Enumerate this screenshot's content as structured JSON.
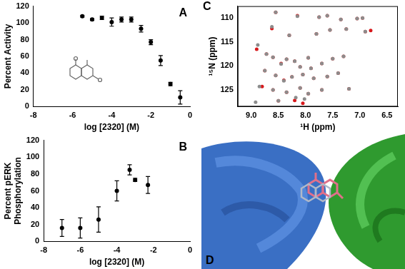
{
  "chart_data": [
    {
      "type": "scatter",
      "title": "A",
      "x_label": "log [2320] (M)",
      "y_label": "Percent Activity",
      "xlim": [
        -8,
        0
      ],
      "xticks": [
        -8,
        -6,
        -4,
        -2,
        0
      ],
      "ylim": [
        0,
        120
      ],
      "yticks": [
        0,
        20,
        40,
        60,
        80,
        100,
        120
      ],
      "grid": false,
      "series": [
        {
          "color": "#000000",
          "marker": "circle",
          "x": [
            -5.5,
            -5,
            -4.5,
            -4,
            -3.5,
            -3,
            -2.5,
            -2,
            -1.5,
            -1,
            -0.5
          ],
          "values": [
            108,
            104,
            106,
            101,
            104,
            104,
            93,
            77,
            55,
            27,
            11
          ],
          "errors": [
            1,
            1,
            2,
            5,
            3,
            3,
            4,
            3,
            6,
            2,
            8
          ]
        }
      ]
    },
    {
      "type": "scatter",
      "title": "B",
      "x_label": "log [2320] (M)",
      "y_label": "Percent pERK Phosphorylation",
      "xlim": [
        -8,
        0
      ],
      "xticks": [
        -8,
        -6,
        -4,
        -2,
        0
      ],
      "ylim": [
        0,
        120
      ],
      "yticks": [
        0,
        20,
        40,
        60,
        80,
        100,
        120
      ],
      "grid": false,
      "series": [
        {
          "color": "#000000",
          "marker": "circle",
          "x": [
            -7,
            -6,
            -5,
            -4,
            -3.3,
            -3,
            -2.3
          ],
          "values": [
            16,
            16,
            26,
            60,
            85,
            73,
            67
          ],
          "errors": [
            10,
            12,
            15,
            12,
            6,
            2,
            10
          ]
        }
      ]
    },
    {
      "type": "scatter",
      "title": "C",
      "x_label": "¹H (ppm)",
      "y_label": "¹⁵N (ppm)",
      "xlim": [
        9.25,
        6.3
      ],
      "xticks": [
        {
          "value": 9,
          "label": "9.0"
        },
        8.5,
        {
          "value": 8,
          "label": "8.0"
        },
        7.5,
        {
          "value": 7,
          "label": "7.0"
        },
        6.5
      ],
      "ylim": [
        128.5,
        107.5
      ],
      "yticks": [
        110,
        115,
        120,
        125
      ],
      "grid": false,
      "series": [
        {
          "color": "#8c8c8c",
          "marker": "circle",
          "x": [
            8.55,
            8.15,
            7.75,
            7.6,
            7.35,
            7.05,
            6.95,
            8.62,
            8.3,
            7.8,
            7.55,
            7.25,
            6.9,
            8.88,
            8.72,
            8.6,
            8.45,
            8.35,
            8.2,
            8.1,
            7.95,
            7.9,
            7.7,
            7.5,
            7.3,
            8.75,
            8.55,
            8.4,
            8.25,
            8.05,
            7.85,
            7.6,
            7.4,
            8.85,
            8.6,
            8.35,
            8.1,
            7.95,
            7.7,
            8.18,
            8.02,
            8.5,
            7.2,
            8.92
          ],
          "values": [
            108.8,
            109.6,
            109.8,
            109.5,
            110.3,
            110.1,
            110.0,
            111.8,
            113.6,
            113.3,
            112.5,
            112.3,
            112.8,
            115.6,
            117.5,
            118.2,
            119.6,
            118.6,
            119.0,
            120.2,
            118.3,
            120.5,
            119.5,
            118.5,
            118.0,
            121.0,
            122.0,
            123.1,
            122.3,
            121.8,
            122.6,
            122.2,
            121.5,
            124.3,
            125.0,
            125.5,
            124.6,
            125.8,
            125.0,
            126.6,
            126.9,
            127.3,
            124.8,
            127.6
          ]
        },
        {
          "color": "#d7191c",
          "marker": "circle",
          "x": [
            8.55,
            8.15,
            7.75,
            7.6,
            7.35,
            7.05,
            6.95,
            8.62,
            8.3,
            7.8,
            7.55,
            7.25,
            6.9,
            6.8,
            8.9,
            8.72,
            8.6,
            8.45,
            8.35,
            8.2,
            8.1,
            7.95,
            7.9,
            7.7,
            7.5,
            7.3,
            8.75,
            8.55,
            8.4,
            8.25,
            8.05,
            7.85,
            7.6,
            7.4,
            8.8,
            8.6,
            8.35,
            8.1,
            7.95,
            7.7,
            8.2,
            8.05,
            8.5,
            7.2
          ],
          "values": [
            108.8,
            109.5,
            109.8,
            109.5,
            110.3,
            110.1,
            110.0,
            112.2,
            113.6,
            113.3,
            112.5,
            112.3,
            112.8,
            112.6,
            116.5,
            117.5,
            118.2,
            119.5,
            118.6,
            119.0,
            120.2,
            118.3,
            120.5,
            119.5,
            118.5,
            118.0,
            121.0,
            122.0,
            123.0,
            122.3,
            121.8,
            122.6,
            122.2,
            121.5,
            124.3,
            125.0,
            125.5,
            124.6,
            125.8,
            125.0,
            127.2,
            127.8,
            127.3,
            124.8
          ]
        }
      ]
    }
  ],
  "image_panel": {
    "label": "D"
  }
}
